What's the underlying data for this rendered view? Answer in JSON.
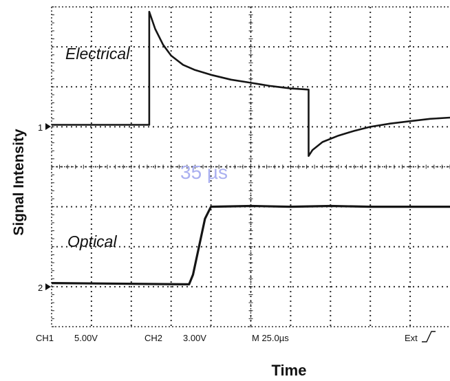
{
  "chart_data": {
    "type": "line",
    "xlabel": "Time",
    "ylabel": "Signal Intensity",
    "x_range_div": [
      0,
      10
    ],
    "y_range_div": [
      0,
      8
    ],
    "grid": true,
    "series": [
      {
        "name": "Electrical",
        "channel_marker": "1",
        "points": [
          [
            0,
            5.05
          ],
          [
            2.45,
            5.05
          ],
          [
            2.45,
            7.88
          ],
          [
            2.6,
            7.45
          ],
          [
            2.8,
            7.05
          ],
          [
            3.0,
            6.78
          ],
          [
            3.3,
            6.55
          ],
          [
            3.6,
            6.42
          ],
          [
            4.0,
            6.3
          ],
          [
            4.5,
            6.18
          ],
          [
            5.0,
            6.1
          ],
          [
            5.5,
            6.02
          ],
          [
            6.0,
            5.96
          ],
          [
            6.45,
            5.93
          ],
          [
            6.45,
            4.27
          ],
          [
            6.55,
            4.42
          ],
          [
            6.8,
            4.62
          ],
          [
            7.2,
            4.78
          ],
          [
            7.6,
            4.9
          ],
          [
            8.0,
            5.0
          ],
          [
            8.5,
            5.08
          ],
          [
            9.0,
            5.14
          ],
          [
            9.5,
            5.2
          ],
          [
            10,
            5.23
          ]
        ]
      },
      {
        "name": "Optical",
        "channel_marker": "2",
        "points": [
          [
            0,
            1.09
          ],
          [
            3.45,
            1.06
          ],
          [
            3.55,
            1.3
          ],
          [
            3.7,
            2.0
          ],
          [
            3.85,
            2.7
          ],
          [
            4.0,
            3.0
          ],
          [
            5.0,
            3.02
          ],
          [
            6.0,
            3.0
          ],
          [
            7.0,
            3.02
          ],
          [
            8.0,
            3.0
          ],
          [
            9.0,
            3.0
          ],
          [
            10,
            3.0
          ]
        ]
      }
    ],
    "annotations": [
      "35 µs"
    ],
    "scope_settings": {
      "ch1_label": "CH1",
      "ch1_scale": "5.00V",
      "ch2_label": "CH2",
      "ch2_scale": "3.00V",
      "time_scale": "M 25.0µs",
      "trigger": "Ext",
      "trigger_icon": "rising-edge-icon"
    }
  },
  "colors": {
    "trace": "#151515",
    "grid": "#2a2a2a",
    "annotation": "#aab0f0"
  }
}
